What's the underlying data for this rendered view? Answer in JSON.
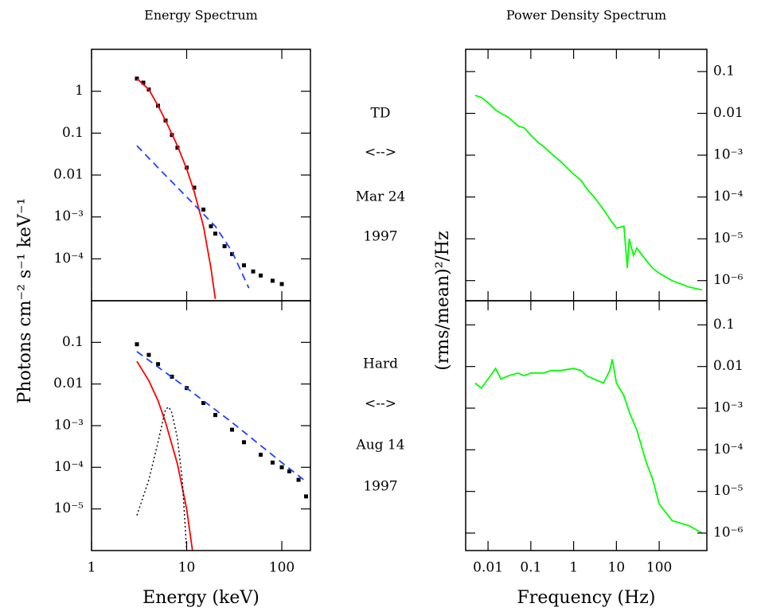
{
  "chart_data": [
    {
      "type": "line",
      "title": "Energy Spectrum",
      "ylabel": "Photons cm⁻² s⁻¹ keV⁻¹",
      "log_x": true,
      "log_y": true,
      "xlim": [
        1,
        200
      ],
      "ylim": [
        1e-05,
        10
      ],
      "yticks": [
        1,
        0.1,
        0.01,
        {
          "value": 0.001,
          "label": "10⁻³"
        },
        {
          "value": 0.0001,
          "label": "10⁻⁴"
        }
      ],
      "ytick_side": "left",
      "series": [
        {
          "color": "#000000",
          "marker": true,
          "x": [
            3,
            3.5,
            4,
            5,
            6,
            7,
            8,
            10,
            12,
            15,
            18,
            20,
            25,
            30,
            40,
            50,
            60,
            80,
            100
          ],
          "values": [
            2,
            1.6,
            1.1,
            0.45,
            0.2,
            0.09,
            0.045,
            0.015,
            0.005,
            0.0015,
            0.0006,
            0.0004,
            0.0002,
            0.00013,
            7e-05,
            5e-05,
            4e-05,
            3e-05,
            2.5e-05
          ]
        },
        {
          "color": "#ff0000",
          "x": [
            3,
            4,
            5,
            6,
            8,
            10,
            12,
            15,
            18,
            20
          ],
          "values": [
            2,
            1.1,
            0.45,
            0.2,
            0.05,
            0.014,
            0.004,
            0.0006,
            6e-05,
            1.1e-05
          ]
        },
        {
          "color": "#2040ff",
          "dash": "dashed",
          "x": [
            3,
            5,
            10,
            20,
            30,
            45
          ],
          "values": [
            0.05,
            0.015,
            0.003,
            0.0006,
            0.00015,
            2e-05
          ]
        }
      ]
    },
    {
      "type": "line",
      "title": "Power Density Spectrum",
      "ylabel": "(rms/mean)²/Hz",
      "log_x": true,
      "log_y": true,
      "xlim": [
        0.003,
        1300
      ],
      "ylim": [
        3.3e-07,
        0.34
      ],
      "yticks": [
        0.1,
        0.01,
        {
          "value": 0.001,
          "label": "10⁻³"
        },
        {
          "value": 0.0001,
          "label": "10⁻⁴"
        },
        {
          "value": 1e-05,
          "label": "10⁻⁵"
        },
        {
          "value": 1e-06,
          "label": "10⁻⁶"
        }
      ],
      "ytick_side": "right",
      "series": [
        {
          "color": "#00ff00",
          "x": [
            0.005,
            0.007,
            0.01,
            0.015,
            0.02,
            0.03,
            0.05,
            0.07,
            0.1,
            0.15,
            0.2,
            0.3,
            0.5,
            0.7,
            1,
            1.5,
            2,
            3,
            5,
            7,
            10,
            15,
            18,
            20,
            25,
            30,
            50,
            70,
            100,
            200,
            500,
            1000
          ],
          "values": [
            0.027,
            0.024,
            0.018,
            0.012,
            0.01,
            0.008,
            0.005,
            0.0045,
            0.003,
            0.002,
            0.0016,
            0.0011,
            0.0007,
            0.0005,
            0.00035,
            0.00025,
            0.00016,
            0.0001,
            5e-05,
            3e-05,
            1.8e-05,
            2e-05,
            2e-06,
            1e-05,
            4e-06,
            6e-06,
            3e-06,
            2e-06,
            1.5e-06,
            1e-06,
            7e-07,
            6e-07
          ]
        }
      ]
    },
    {
      "type": "line",
      "xlabel": "Energy (keV)",
      "log_x": true,
      "log_y": true,
      "xlim": [
        1,
        200
      ],
      "ylim": [
        1e-06,
        1
      ],
      "xticks": [
        1,
        10,
        100
      ],
      "yticks": [
        0.1,
        0.01,
        {
          "value": 0.001,
          "label": "10⁻³"
        },
        {
          "value": 0.0001,
          "label": "10⁻⁴"
        },
        {
          "value": 1e-05,
          "label": "10⁻⁵"
        }
      ],
      "ytick_side": "left",
      "series": [
        {
          "color": "#000000",
          "marker": true,
          "x": [
            3,
            4,
            5,
            7,
            10,
            15,
            20,
            30,
            40,
            60,
            80,
            100,
            120,
            150,
            180
          ],
          "values": [
            0.09,
            0.05,
            0.03,
            0.015,
            0.008,
            0.0035,
            0.0018,
            0.0008,
            0.0004,
            0.0002,
            0.00013,
            0.0001,
            8e-05,
            5e-05,
            2e-05
          ]
        },
        {
          "color": "#2040ff",
          "dash": "dashed",
          "x": [
            3,
            10,
            30,
            100,
            170
          ],
          "values": [
            0.06,
            0.008,
            0.0012,
            0.00013,
            5e-05
          ]
        },
        {
          "color": "#ff0000",
          "x": [
            3,
            4,
            5,
            6,
            8,
            10,
            11.5
          ],
          "values": [
            0.035,
            0.012,
            0.004,
            0.0012,
            0.00012,
            1e-05,
            1e-06
          ]
        },
        {
          "color": "#000000",
          "dash": "dotted",
          "x": [
            3,
            4,
            5,
            6,
            6.5,
            7,
            8,
            9,
            10
          ],
          "values": [
            7e-06,
            5e-05,
            0.0004,
            0.0025,
            0.0028,
            0.002,
            0.0005,
            5e-05,
            1e-06
          ]
        }
      ]
    },
    {
      "type": "line",
      "xlabel": "Frequency (Hz)",
      "log_x": true,
      "log_y": true,
      "xlim": [
        0.003,
        1300
      ],
      "ylim": [
        3.8e-07,
        0.38
      ],
      "xticks": [
        0.01,
        0.1,
        1,
        10,
        100
      ],
      "yticks": [
        0.1,
        0.01,
        {
          "value": 0.001,
          "label": "10⁻³"
        },
        {
          "value": 0.0001,
          "label": "10⁻⁴"
        },
        {
          "value": 1e-05,
          "label": "10⁻⁵"
        },
        {
          "value": 1e-06,
          "label": "10⁻⁶"
        }
      ],
      "ytick_side": "right",
      "series": [
        {
          "color": "#00ff00",
          "x": [
            0.005,
            0.007,
            0.01,
            0.015,
            0.02,
            0.03,
            0.05,
            0.07,
            0.1,
            0.2,
            0.3,
            0.5,
            1,
            1.5,
            2,
            3,
            5,
            7,
            8,
            10,
            15,
            20,
            30,
            50,
            70,
            100,
            200,
            500,
            1000
          ],
          "values": [
            0.004,
            0.003,
            0.005,
            0.009,
            0.005,
            0.006,
            0.007,
            0.006,
            0.007,
            0.007,
            0.008,
            0.008,
            0.009,
            0.008,
            0.006,
            0.005,
            0.004,
            0.008,
            0.015,
            0.004,
            0.002,
            0.0008,
            0.0003,
            5e-05,
            2e-05,
            5e-06,
            2e-06,
            1.5e-06,
            1e-06
          ]
        }
      ]
    }
  ],
  "labels": [
    [
      "TD",
      "<-->",
      "Mar 24",
      "1997"
    ],
    [
      "Hard",
      "<-->",
      "Aug 14",
      "1997"
    ]
  ]
}
